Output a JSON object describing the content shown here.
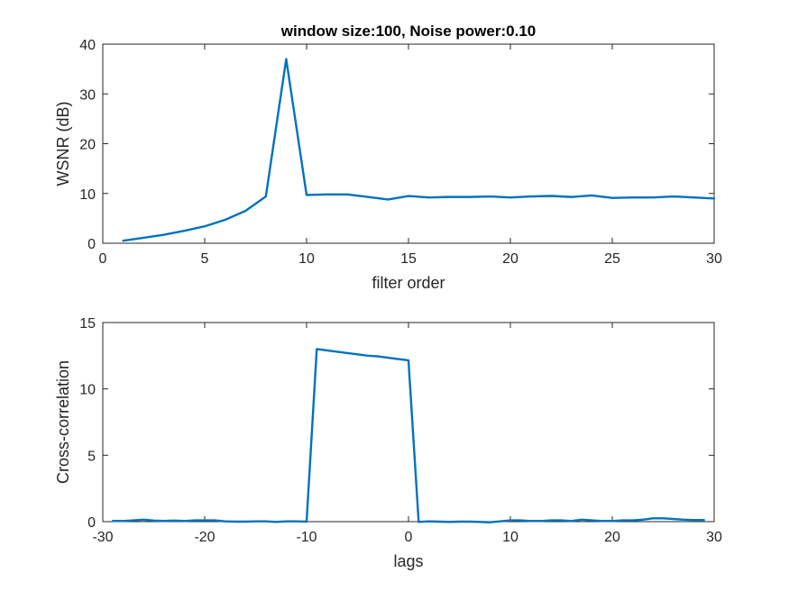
{
  "chart_data": [
    {
      "type": "line",
      "title": "window size:100, Noise power:0.10",
      "xlabel": "filter order",
      "ylabel": "WSNR (dB)",
      "xlim": [
        0,
        30
      ],
      "ylim": [
        0,
        40
      ],
      "xticks": [
        0,
        5,
        10,
        15,
        20,
        25,
        30
      ],
      "yticks": [
        0,
        10,
        20,
        30,
        40
      ],
      "grid": false,
      "color": "#0072BD",
      "series": [
        {
          "x": [
            1,
            2,
            3,
            4,
            5,
            6,
            7,
            8,
            9,
            10,
            11,
            12,
            13,
            14,
            15,
            16,
            17,
            18,
            19,
            20,
            21,
            22,
            23,
            24,
            25,
            26,
            27,
            28,
            29,
            30
          ],
          "y": [
            0.5,
            1.1,
            1.7,
            2.5,
            3.4,
            4.7,
            6.5,
            9.4,
            37.0,
            9.7,
            9.8,
            9.8,
            9.3,
            8.8,
            9.5,
            9.2,
            9.3,
            9.3,
            9.4,
            9.2,
            9.4,
            9.5,
            9.3,
            9.6,
            9.1,
            9.2,
            9.2,
            9.4,
            9.2,
            9.0
          ]
        }
      ]
    },
    {
      "type": "line",
      "title": "",
      "xlabel": "lags",
      "ylabel": "Cross-correlation",
      "xlim": [
        -30,
        30
      ],
      "ylim": [
        0,
        15
      ],
      "xticks": [
        -30,
        -20,
        -10,
        0,
        10,
        20,
        30
      ],
      "yticks": [
        0,
        5,
        10,
        15
      ],
      "grid": false,
      "color": "#0072BD",
      "series": [
        {
          "x": [
            -29,
            -28,
            -27,
            -26,
            -25,
            -24,
            -23,
            -22,
            -21,
            -20,
            -19,
            -18,
            -17,
            -16,
            -15,
            -14,
            -13,
            -12,
            -11,
            -10,
            -9,
            -8,
            -7,
            -6,
            -5,
            -4,
            -3,
            -2,
            -1,
            0,
            1,
            2,
            3,
            4,
            5,
            6,
            7,
            8,
            9,
            10,
            11,
            12,
            13,
            14,
            15,
            16,
            17,
            18,
            19,
            20,
            21,
            22,
            23,
            24,
            25,
            26,
            27,
            28,
            29
          ],
          "y": [
            0.05,
            0.05,
            0.1,
            0.15,
            0.08,
            0.05,
            0.08,
            0.05,
            0.1,
            0.1,
            0.1,
            0.02,
            0.0,
            0.0,
            0.02,
            0.02,
            -0.02,
            0.02,
            0.02,
            0.0,
            13.0,
            12.9,
            12.8,
            12.7,
            12.6,
            12.5,
            12.45,
            12.35,
            12.25,
            12.15,
            -0.02,
            0.02,
            0.0,
            -0.02,
            0.0,
            0.0,
            -0.02,
            -0.05,
            0.02,
            0.1,
            0.1,
            0.05,
            0.05,
            0.1,
            0.1,
            0.05,
            0.15,
            0.1,
            0.05,
            0.05,
            0.1,
            0.1,
            0.15,
            0.25,
            0.25,
            0.2,
            0.15,
            0.12,
            0.12
          ]
        }
      ]
    }
  ]
}
